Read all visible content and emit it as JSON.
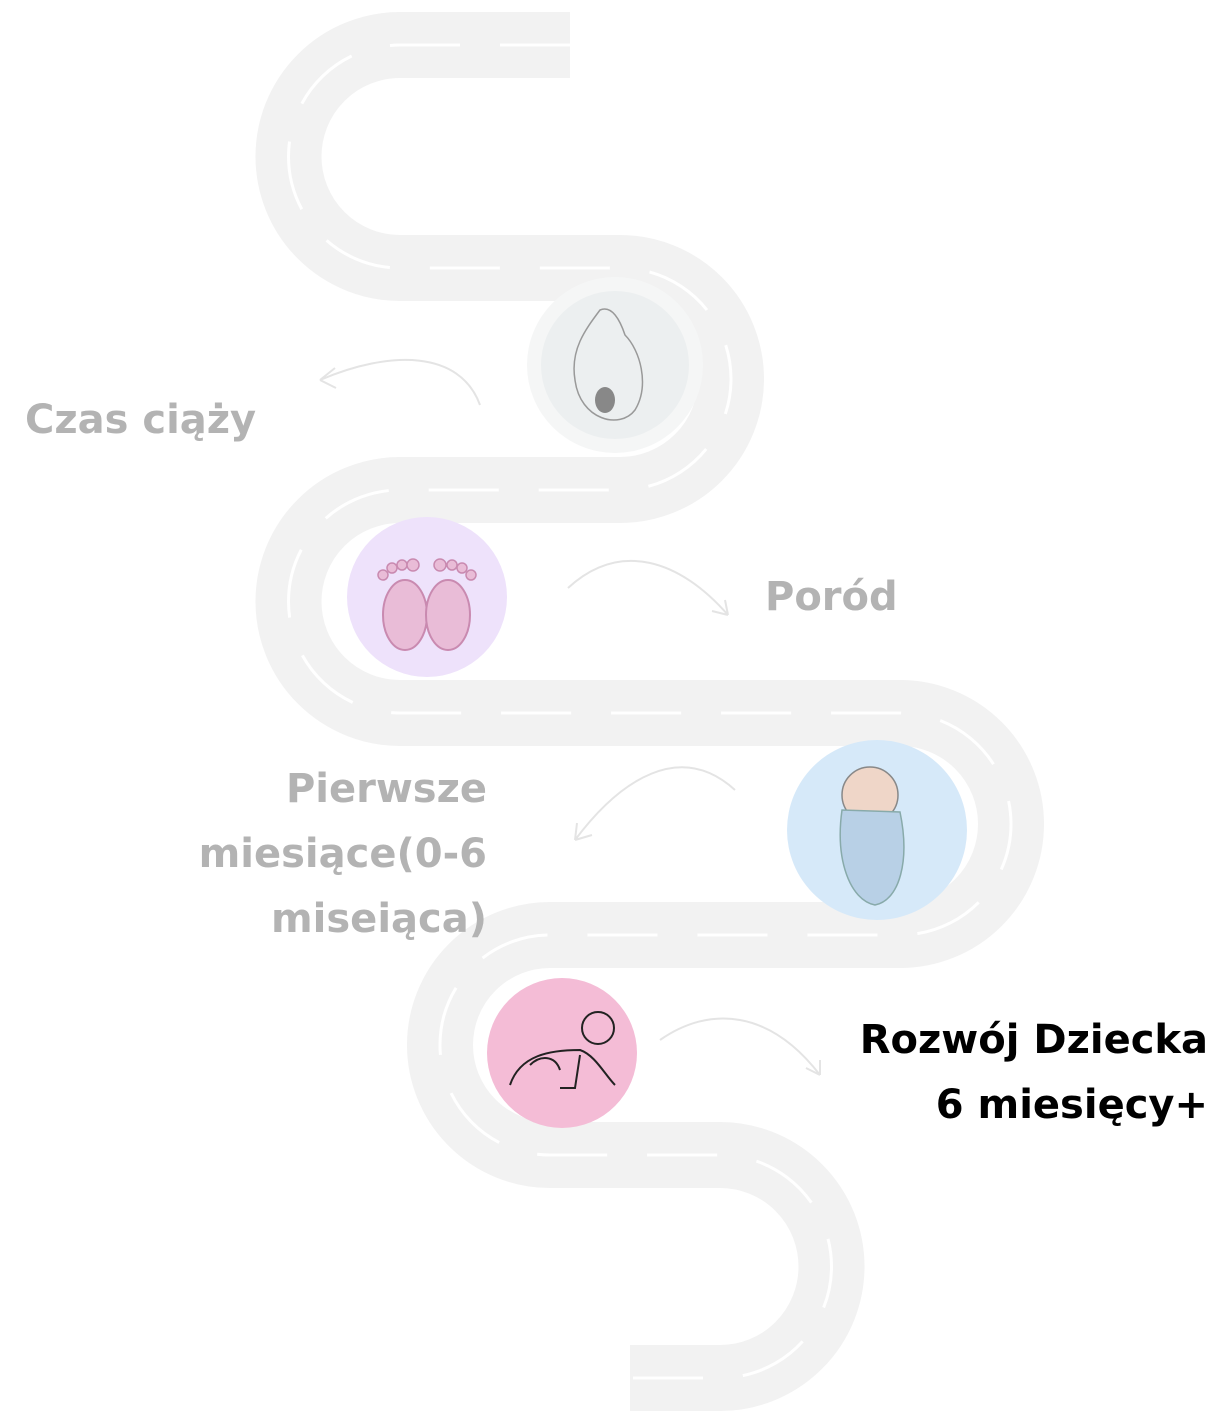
{
  "stages": [
    {
      "label_lines": [
        "Czas ciąży"
      ]
    },
    {
      "label_lines": [
        "Poród"
      ]
    },
    {
      "label_lines": [
        "Pierwsze",
        "miesiące(0-6",
        "miseiąca)"
      ]
    },
    {
      "label_lines": [
        "Rozwój Dziecka",
        "6 miesięcy+"
      ]
    }
  ]
}
